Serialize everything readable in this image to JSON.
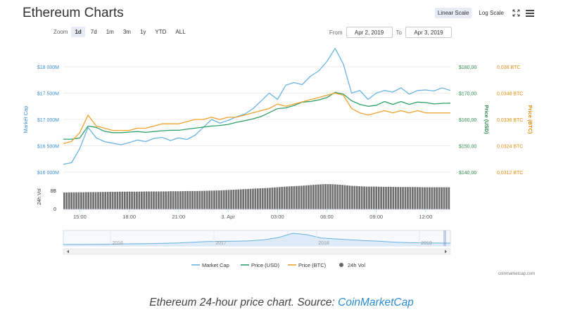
{
  "title": "Ethereum Charts",
  "toolbar": {
    "linear_scale": "Linear Scale",
    "log_scale": "Log Scale",
    "expand_icon": "expand-icon",
    "menu_icon": "hamburger-menu-icon"
  },
  "zoom": {
    "label": "Zoom",
    "options": [
      "1d",
      "7d",
      "1m",
      "3m",
      "1y",
      "YTD",
      "ALL"
    ],
    "selected": "1d"
  },
  "range": {
    "from_label": "From",
    "from_value": "Apr 2, 2019",
    "to_label": "To",
    "to_value": "Apr 3, 2019"
  },
  "colors": {
    "market_cap": "#6ab4e4",
    "price_usd": "#2fa066",
    "price_btc": "#f0a22e",
    "volume": "#6e6e6e",
    "price_usd_axis": "#2b8a4e",
    "price_btc_axis": "#e38b0c"
  },
  "chart_data": {
    "type": "line",
    "legend_position": "bottom",
    "x_ticks": [
      "15:00",
      "18:00",
      "21:00",
      "3. Apr",
      "03:00",
      "06:00",
      "09:00",
      "12:00"
    ],
    "axes": {
      "market_cap": {
        "label": "Market Cap",
        "ticks": [
          "$18 000M",
          "$17 500M",
          "$17 000M",
          "$16 500M",
          "$16 000M"
        ],
        "ylim": [
          16000,
          18000
        ]
      },
      "price_usd": {
        "label": "Price (USD)",
        "ticks": [
          "$180,00",
          "$170,00",
          "$160,00",
          "$150,00",
          "$140,00"
        ],
        "ylim": [
          140,
          180
        ]
      },
      "price_btc": {
        "label": "Price (BTC)",
        "ticks": [
          "0,036 BTC",
          "0,0348 BTC",
          "0,0336 BTC",
          "0,0324 BTC",
          "0,0312 BTC"
        ],
        "ylim": [
          0.0312,
          0.036
        ]
      },
      "volume": {
        "label": "24h Vol",
        "ticks": [
          "8B",
          "0"
        ],
        "ylim": [
          0,
          12
        ]
      }
    },
    "x": [
      "14:00",
      "14:30",
      "15:00",
      "15:30",
      "16:00",
      "16:30",
      "17:00",
      "17:30",
      "18:00",
      "18:30",
      "19:00",
      "19:30",
      "20:00",
      "20:30",
      "21:00",
      "21:30",
      "22:00",
      "22:30",
      "23:00",
      "23:30",
      "00:00",
      "00:30",
      "01:00",
      "01:30",
      "02:00",
      "02:30",
      "03:00",
      "03:30",
      "04:00",
      "04:30",
      "05:00",
      "05:30",
      "06:00",
      "06:30",
      "07:00",
      "07:30",
      "08:00",
      "08:30",
      "09:00",
      "09:30",
      "10:00",
      "10:30",
      "11:00",
      "11:30",
      "12:00",
      "12:30",
      "13:00",
      "13:30"
    ],
    "series": [
      {
        "name": "Market Cap",
        "axis": "market_cap",
        "values": [
          16150,
          16180,
          16450,
          16850,
          16650,
          16580,
          16550,
          16520,
          16560,
          16610,
          16580,
          16640,
          16660,
          16600,
          16650,
          16620,
          16700,
          16850,
          17000,
          16930,
          16980,
          17050,
          17100,
          17200,
          17350,
          17500,
          17380,
          17650,
          17700,
          17660,
          17820,
          17920,
          18100,
          18350,
          18050,
          17500,
          17550,
          17380,
          17500,
          17550,
          17520,
          17600,
          17480,
          17550,
          17560,
          17540,
          17600,
          17550
        ]
      },
      {
        "name": "Price (USD)",
        "axis": "price_usd",
        "values": [
          152.5,
          152.5,
          153.0,
          157.5,
          157.0,
          155.5,
          155.0,
          155.0,
          155.2,
          155.4,
          155.1,
          155.4,
          155.7,
          155.9,
          155.9,
          156.3,
          156.7,
          157.1,
          157.5,
          157.7,
          158.1,
          158.9,
          159.5,
          160.2,
          161.1,
          162.6,
          164.1,
          164.4,
          165.3,
          166.6,
          166.8,
          167.4,
          168.3,
          170.3,
          169.6,
          167.1,
          165.7,
          165.0,
          165.4,
          166.8,
          165.7,
          166.8,
          165.7,
          166.6,
          166.4,
          165.9,
          166.1,
          166.2
        ]
      },
      {
        "name": "Price (BTC)",
        "axis": "price_btc",
        "values": [
          0.0325,
          0.0326,
          0.033,
          0.0338,
          0.0333,
          0.0332,
          0.0331,
          0.0331,
          0.0331,
          0.0332,
          0.0332,
          0.0333,
          0.0334,
          0.0334,
          0.0334,
          0.0335,
          0.0336,
          0.0336,
          0.0337,
          0.0336,
          0.0337,
          0.0337,
          0.0338,
          0.0339,
          0.034,
          0.0341,
          0.0343,
          0.0342,
          0.0343,
          0.0344,
          0.0345,
          0.0346,
          0.0347,
          0.0348,
          0.0347,
          0.0341,
          0.0339,
          0.0338,
          0.0339,
          0.034,
          0.0339,
          0.034,
          0.0339,
          0.034,
          0.0339,
          0.0339,
          0.0339,
          0.0339
        ]
      },
      {
        "name": "24h Vol",
        "axis": "volume",
        "type": "bar",
        "values": [
          8.0,
          8.1,
          8.1,
          8.2,
          8.2,
          8.3,
          8.3,
          8.4,
          8.4,
          8.4,
          8.5,
          8.5,
          8.5,
          8.6,
          8.6,
          8.7,
          8.7,
          8.8,
          8.9,
          9.0,
          9.2,
          9.4,
          9.6,
          9.8,
          10.0,
          10.2,
          10.5,
          10.8,
          11.0,
          11.2,
          11.5,
          11.8,
          12.0,
          11.9,
          11.6,
          11.2,
          11.0,
          10.8,
          10.8,
          10.7,
          10.7,
          10.6,
          10.6,
          10.6,
          10.5,
          10.5,
          10.5,
          10.5
        ]
      }
    ],
    "navigator": {
      "x_ticks": [
        "2016",
        "2017",
        "2018",
        "2019"
      ],
      "values": [
        0.1,
        0.1,
        0.2,
        0.3,
        0.5,
        0.8,
        1.0,
        1.3,
        1.7,
        2.4,
        3.2,
        3.4,
        3.6,
        4.0,
        5.0,
        7.5,
        12.0,
        10.5,
        7.0,
        6.0,
        5.0,
        4.2,
        3.5,
        2.6,
        2.0,
        1.8,
        1.6,
        1.5
      ]
    },
    "source": "coinmarketcap.com"
  },
  "caption": {
    "text": "Ethereum 24-hour price chart. Source: ",
    "link": "CoinMarketCap"
  }
}
